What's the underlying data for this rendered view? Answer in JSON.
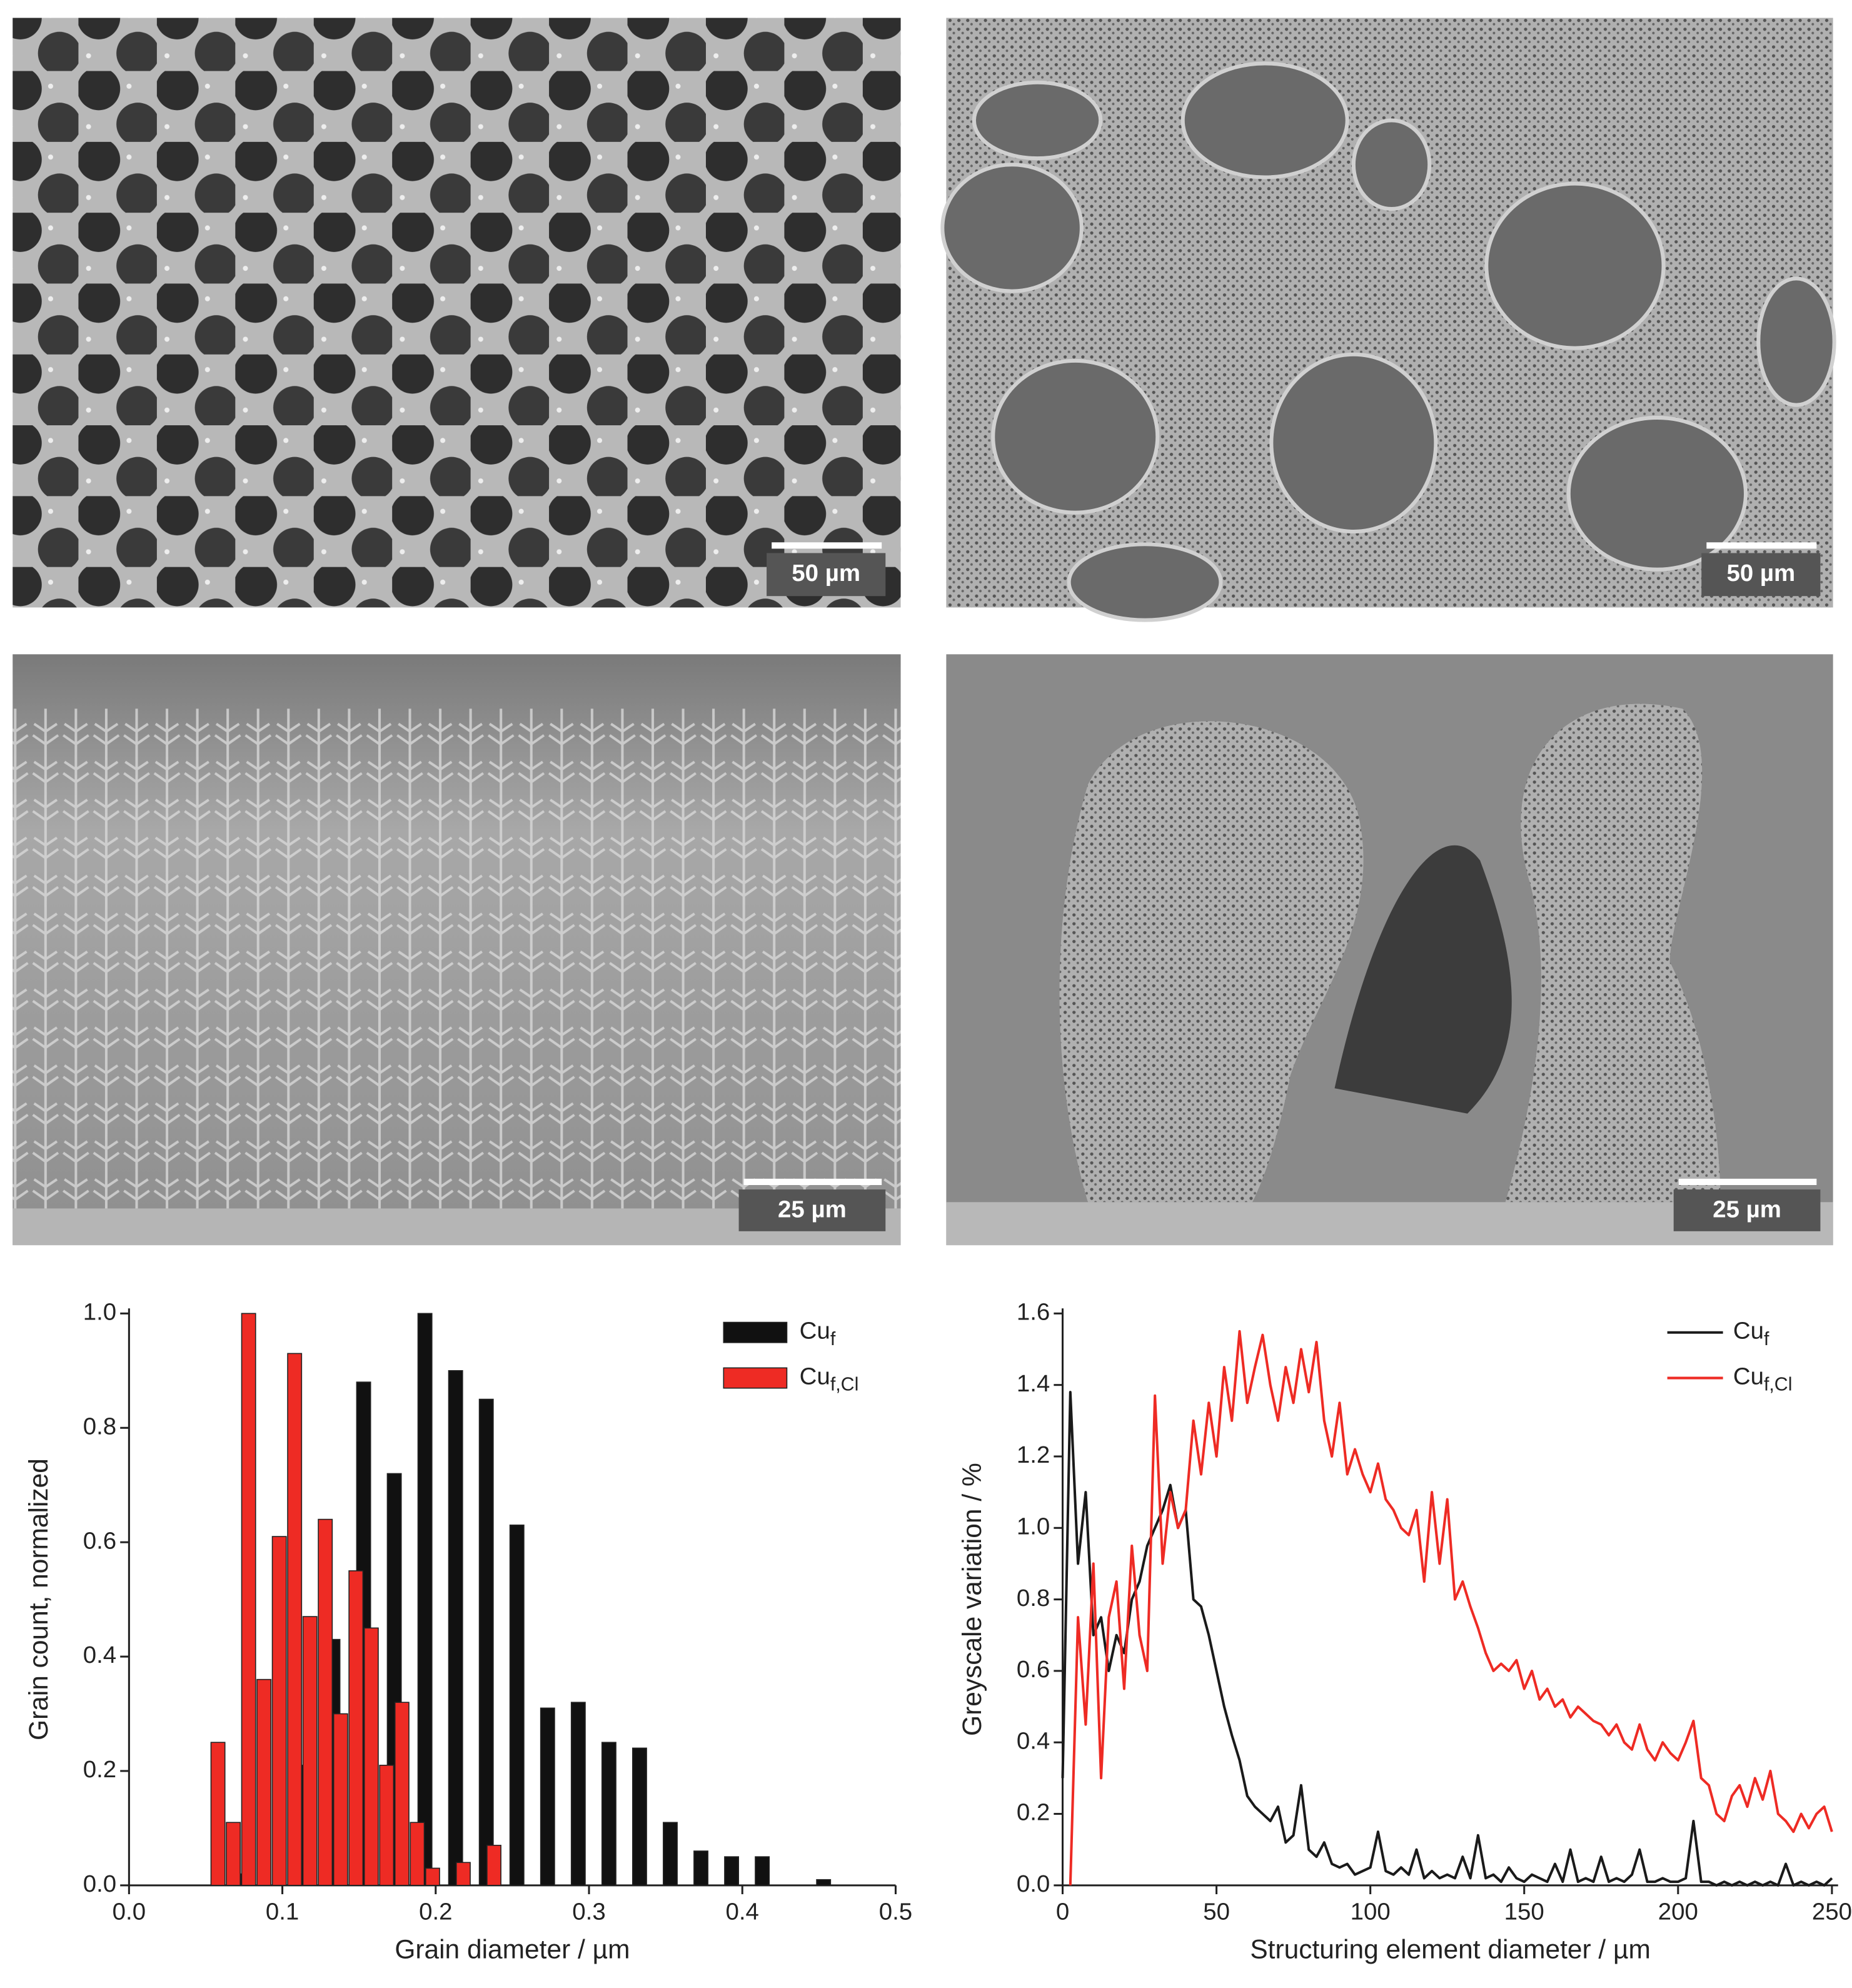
{
  "images": [
    {
      "scale_bar": "50 µm"
    },
    {
      "scale_bar": "50 µm"
    },
    {
      "scale_bar": "25 µm"
    },
    {
      "scale_bar": "25 µm"
    }
  ],
  "chart_data": [
    {
      "type": "bar",
      "xlabel": "Grain diameter / µm",
      "ylabel": "Grain count, normalized",
      "xlim": [
        0,
        0.5
      ],
      "ylim": [
        0,
        1.0
      ],
      "xticks": [
        {
          "value": 0,
          "label": "0.0"
        },
        0.1,
        0.2,
        0.3,
        0.4,
        0.5
      ],
      "yticks": [
        {
          "value": 0,
          "label": "0.0"
        },
        0.2,
        0.4,
        0.6,
        0.8,
        {
          "value": 1,
          "label": "1.0"
        }
      ],
      "legend": "upper right",
      "series": [
        {
          "name": "Cu",
          "subscript": "f",
          "color": "#111111",
          "x": [
            0.073,
            0.113,
            0.133,
            0.153,
            0.173,
            0.193,
            0.213,
            0.233,
            0.253,
            0.273,
            0.293,
            0.313,
            0.333,
            0.353,
            0.373,
            0.393,
            0.413,
            0.453
          ],
          "values": [
            0.02,
            0.21,
            0.43,
            0.88,
            0.72,
            1.0,
            0.9,
            0.85,
            0.63,
            0.31,
            0.32,
            0.25,
            0.24,
            0.11,
            0.06,
            0.05,
            0.05,
            0.01
          ]
        },
        {
          "name": "Cu",
          "subscript": "f,Cl",
          "color": "#ee2b24",
          "x": [
            0.058,
            0.068,
            0.078,
            0.088,
            0.098,
            0.108,
            0.118,
            0.128,
            0.138,
            0.148,
            0.158,
            0.168,
            0.178,
            0.188,
            0.198,
            0.218,
            0.238
          ],
          "values": [
            0.25,
            0.11,
            1.0,
            0.36,
            0.61,
            0.93,
            0.47,
            0.64,
            0.3,
            0.55,
            0.45,
            0.21,
            0.32,
            0.11,
            0.03,
            0.04,
            0.07
          ]
        }
      ]
    },
    {
      "type": "line",
      "xlabel": "Structuring element diameter / µm",
      "ylabel": "Greyscale variation / %",
      "xlim": [
        0,
        252
      ],
      "ylim": [
        0,
        1.6
      ],
      "xticks": [
        0,
        50,
        100,
        150,
        200,
        250
      ],
      "yticks": [
        {
          "value": 0,
          "label": "0.0"
        },
        0.2,
        0.4,
        0.6,
        0.8,
        {
          "value": 1,
          "label": "1.0"
        },
        1.2,
        1.4,
        1.6
      ],
      "legend": "upper right",
      "x": [
        0,
        2.5,
        5,
        7.5,
        10,
        12.5,
        15,
        17.5,
        20,
        22.5,
        25,
        27.5,
        30,
        32.5,
        35,
        37.5,
        40,
        42.5,
        45,
        47.5,
        50,
        52.5,
        55,
        57.5,
        60,
        62.5,
        65,
        67.5,
        70,
        72.5,
        75,
        77.5,
        80,
        82.5,
        85,
        87.5,
        90,
        92.5,
        95,
        97.5,
        100,
        102.5,
        105,
        107.5,
        110,
        112.5,
        115,
        117.5,
        120,
        122.5,
        125,
        127.5,
        130,
        132.5,
        135,
        137.5,
        140,
        142.5,
        145,
        147.5,
        150,
        152.5,
        155,
        157.5,
        160,
        162.5,
        165,
        167.5,
        170,
        172.5,
        175,
        177.5,
        180,
        182.5,
        185,
        187.5,
        190,
        192.5,
        195,
        197.5,
        200,
        202.5,
        205,
        207.5,
        210,
        212.5,
        215,
        217.5,
        220,
        222.5,
        225,
        227.5,
        230,
        232.5,
        235,
        237.5,
        240,
        242.5,
        245,
        247.5,
        250
      ],
      "series": [
        {
          "name": "Cu",
          "subscript": "f",
          "color": "#1a1a1a",
          "values": [
            0.3,
            1.38,
            0.9,
            1.1,
            0.7,
            0.75,
            0.6,
            0.7,
            0.65,
            0.8,
            0.85,
            0.95,
            1.0,
            1.05,
            1.12,
            1.0,
            1.05,
            0.8,
            0.78,
            0.7,
            0.6,
            0.5,
            0.42,
            0.35,
            0.25,
            0.22,
            0.2,
            0.18,
            0.22,
            0.12,
            0.14,
            0.28,
            0.1,
            0.08,
            0.12,
            0.06,
            0.05,
            0.06,
            0.03,
            0.04,
            0.05,
            0.15,
            0.04,
            0.03,
            0.05,
            0.03,
            0.1,
            0.02,
            0.04,
            0.02,
            0.03,
            0.02,
            0.08,
            0.02,
            0.14,
            0.02,
            0.03,
            0.01,
            0.05,
            0.02,
            0.01,
            0.03,
            0.02,
            0.01,
            0.06,
            0.01,
            0.1,
            0.01,
            0.02,
            0.01,
            0.08,
            0.01,
            0.02,
            0.01,
            0.03,
            0.1,
            0.01,
            0.01,
            0.02,
            0.01,
            0.01,
            0.02,
            0.18,
            0.01,
            0.01,
            0,
            0.01,
            0,
            0.01,
            0,
            0.01,
            0,
            0.01,
            0,
            0.06,
            0,
            0.01,
            0,
            0.01,
            0,
            0.02
          ]
        },
        {
          "name": "Cu",
          "subscript": "f,Cl",
          "color": "#ee2b24",
          "values": [
            null,
            0,
            0.75,
            0.45,
            0.9,
            0.3,
            0.75,
            0.85,
            0.55,
            0.95,
            0.7,
            0.6,
            1.37,
            0.9,
            1.1,
            1.0,
            1.05,
            1.3,
            1.15,
            1.35,
            1.2,
            1.45,
            1.3,
            1.55,
            1.35,
            1.45,
            1.54,
            1.4,
            1.3,
            1.45,
            1.35,
            1.5,
            1.38,
            1.52,
            1.3,
            1.2,
            1.35,
            1.15,
            1.22,
            1.15,
            1.1,
            1.18,
            1.08,
            1.05,
            1.0,
            0.98,
            1.05,
            0.85,
            1.1,
            0.9,
            1.08,
            0.8,
            0.85,
            0.78,
            0.72,
            0.65,
            0.6,
            0.62,
            0.6,
            0.63,
            0.55,
            0.6,
            0.52,
            0.55,
            0.5,
            0.52,
            0.47,
            0.5,
            0.48,
            0.46,
            0.45,
            0.42,
            0.45,
            0.4,
            0.38,
            0.45,
            0.38,
            0.35,
            0.4,
            0.37,
            0.35,
            0.4,
            0.46,
            0.3,
            0.28,
            0.2,
            0.18,
            0.25,
            0.28,
            0.22,
            0.3,
            0.24,
            0.32,
            0.2,
            0.18,
            0.15,
            0.2,
            0.16,
            0.2,
            0.22,
            0.15
          ]
        }
      ]
    }
  ]
}
